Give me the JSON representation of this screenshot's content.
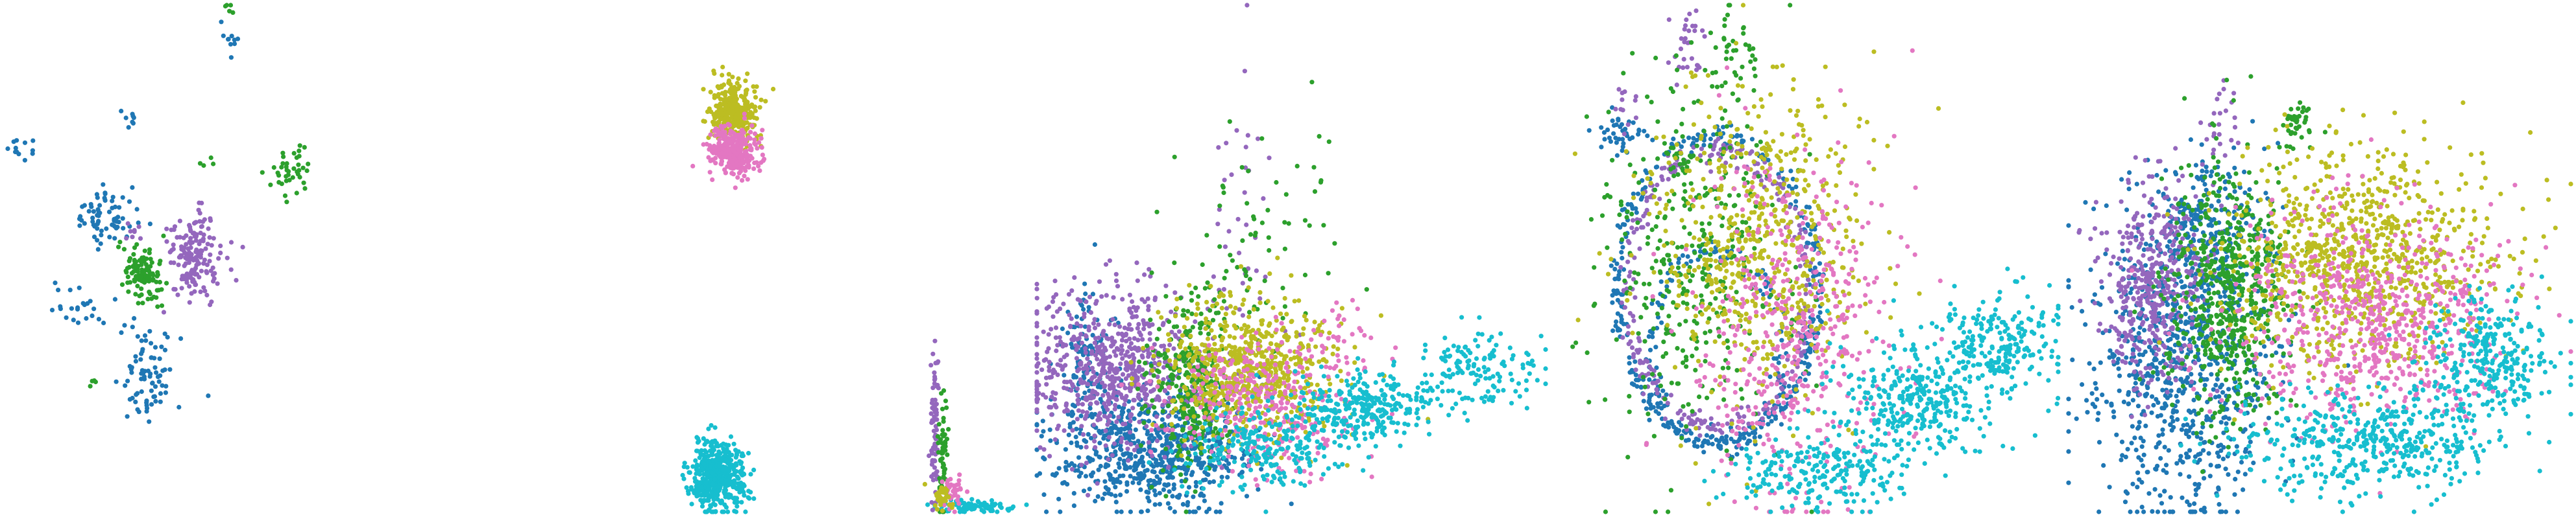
{
  "chart_data": [
    {
      "type": "scatter",
      "panel_index": 1,
      "xlim": [
        0,
        100
      ],
      "ylim": [
        0,
        100
      ],
      "grid": false,
      "legend": "none",
      "series": [
        {
          "color": "#1f77b4",
          "clusters": [
            {
              "cx": 3,
              "cy": 72,
              "sx": 1.5,
              "sy": 1.5,
              "n": 12
            },
            {
              "cx": 17,
              "cy": 58,
              "sx": 2.8,
              "sy": 3.2,
              "n": 70
            },
            {
              "cx": 24,
              "cy": 28,
              "sx": 2.5,
              "sy": 5,
              "n": 80
            },
            {
              "cx": 12,
              "cy": 40,
              "sx": 3,
              "sy": 2.5,
              "n": 24
            },
            {
              "cx": 38,
              "cy": 93,
              "sx": 0.8,
              "sy": 1.2,
              "n": 10
            },
            {
              "cx": 21,
              "cy": 78,
              "sx": 0.8,
              "sy": 0.8,
              "n": 8
            }
          ]
        },
        {
          "color": "#9467bd",
          "clusters": [
            {
              "cx": 32,
              "cy": 50,
              "sx": 2.2,
              "sy": 4.5,
              "n": 170
            },
            {
              "cx": 21,
              "cy": 55,
              "sx": 1.2,
              "sy": 1.2,
              "n": 8
            }
          ]
        },
        {
          "color": "#2ca02c",
          "clusters": [
            {
              "cx": 23,
              "cy": 47,
              "sx": 1.6,
              "sy": 2.8,
              "n": 120
            },
            {
              "cx": 48,
              "cy": 67,
              "sx": 1.6,
              "sy": 2.2,
              "n": 40
            },
            {
              "cx": 38,
              "cy": 99,
              "sx": 0.5,
              "sy": 0.7,
              "n": 5
            },
            {
              "cx": 34,
              "cy": 69,
              "sx": 0.6,
              "sy": 0.8,
              "n": 4
            },
            {
              "cx": 15,
              "cy": 25,
              "sx": 0.6,
              "sy": 0.6,
              "n": 4
            }
          ]
        }
      ]
    },
    {
      "type": "scatter",
      "panel_index": 2,
      "xlim": [
        0,
        100
      ],
      "ylim": [
        0,
        100
      ],
      "grid": false,
      "legend": "none",
      "series": [
        {
          "color": "#bcbd22",
          "clusters": [
            {
              "cx": 30,
              "cy": 79,
              "sx": 3,
              "sy": 3,
              "n": 320
            }
          ]
        },
        {
          "color": "#e377c2",
          "clusters": [
            {
              "cx": 30,
              "cy": 71,
              "sx": 3,
              "sy": 2.5,
              "n": 320
            }
          ]
        },
        {
          "color": "#17becf",
          "clusters": [
            {
              "cx": 26,
              "cy": 7,
              "sx": 3.2,
              "sy": 3.5,
              "n": 460
            },
            {
              "cx": 88,
              "cy": 1,
              "sx": 5,
              "sy": 0.6,
              "n": 80
            }
          ]
        },
        {
          "color": "#9467bd",
          "clusters": [
            {
              "cx": 78,
              "cy": 17,
              "sx": 0.5,
              "sy": 8,
              "n": 80
            }
          ]
        },
        {
          "color": "#2ca02c",
          "clusters": [
            {
              "cx": 80,
              "cy": 11,
              "sx": 0.6,
              "sy": 6,
              "n": 55
            }
          ]
        },
        {
          "color": "#e377c2",
          "clusters": [
            {
              "cx": 82,
              "cy": 4,
              "sx": 1.5,
              "sy": 1.5,
              "n": 45
            }
          ]
        },
        {
          "color": "#bcbd22",
          "clusters": [
            {
              "cx": 80,
              "cy": 3,
              "sx": 1.2,
              "sy": 1.2,
              "n": 35
            }
          ]
        }
      ]
    },
    {
      "type": "scatter",
      "panel_index": 3,
      "xlim": [
        0,
        100
      ],
      "ylim": [
        0,
        100
      ],
      "grid": false,
      "legend": "none",
      "series": [
        {
          "color": "#1f77b4",
          "clusters": [
            {
              "cx": 22,
              "cy": 12,
              "sx": 10,
              "sy": 6,
              "n": 650
            },
            {
              "cx": 10,
              "cy": 30,
              "sx": 2,
              "sy": 8,
              "n": 100
            }
          ]
        },
        {
          "color": "#9467bd",
          "clusters": [
            {
              "cx": 15,
              "cy": 28,
              "sx": 9,
              "sy": 8,
              "n": 650
            },
            {
              "cx": 40,
              "cy": 57,
              "sx": 4,
              "sy": 14,
              "n": 40
            }
          ]
        },
        {
          "color": "#2ca02c",
          "clusters": [
            {
              "cx": 30,
              "cy": 25,
              "sx": 4,
              "sy": 9,
              "n": 320
            },
            {
              "cx": 45,
              "cy": 55,
              "sx": 8,
              "sy": 10,
              "n": 65
            }
          ]
        },
        {
          "color": "#bcbd22",
          "clusters": [
            {
              "cx": 42,
              "cy": 28,
              "sx": 8,
              "sy": 7,
              "n": 650
            }
          ]
        },
        {
          "color": "#e377c2",
          "clusters": [
            {
              "cx": 45,
              "cy": 22,
              "sx": 9,
              "sy": 7,
              "n": 350
            },
            {
              "cx": 58,
              "cy": 35,
              "sx": 3,
              "sy": 3,
              "n": 20
            }
          ]
        },
        {
          "color": "#17becf",
          "clusters": [
            {
              "cx": 45,
              "cy": 12,
              "sx": 8,
              "sy": 4,
              "n": 220
            },
            {
              "cx": 65,
              "cy": 21,
              "sx": 8,
              "sy": 3.5,
              "n": 300
            },
            {
              "cx": 87,
              "cy": 28,
              "sx": 6,
              "sy": 3.5,
              "n": 130
            }
          ]
        }
      ]
    },
    {
      "type": "scatter",
      "panel_index": 4,
      "xlim": [
        0,
        100
      ],
      "ylim": [
        0,
        100
      ],
      "grid": false,
      "legend": "none",
      "series": [
        {
          "color": "#1f77b4",
          "rings": [
            {
              "cx": 32,
              "cy": 44,
              "r": 20,
              "n": 350,
              "ry": 1.5
            },
            {
              "cx": 32,
              "cy": 32,
              "r": 13,
              "n": 150,
              "ry": 1.5
            }
          ],
          "clusters": [
            {
              "cx": 13,
              "cy": 75,
              "sx": 3,
              "sy": 2,
              "n": 40
            }
          ]
        },
        {
          "color": "#9467bd",
          "rings": [
            {
              "cx": 32,
              "cy": 44,
              "r": 18,
              "n": 280,
              "ry": 1.5
            }
          ],
          "clusters": [
            {
              "cx": 26,
              "cy": 92,
              "sx": 2,
              "sy": 5,
              "n": 30
            },
            {
              "cx": 14,
              "cy": 80,
              "sx": 1,
              "sy": 2,
              "n": 12
            }
          ]
        },
        {
          "color": "#2ca02c",
          "clusters": [
            {
              "cx": 27,
              "cy": 50,
              "sx": 9,
              "sy": 17,
              "n": 360
            },
            {
              "cx": 36,
              "cy": 90,
              "sx": 2,
              "sy": 6,
              "n": 40
            },
            {
              "cx": 24,
              "cy": 70,
              "sx": 2,
              "sy": 3,
              "n": 20
            }
          ]
        },
        {
          "color": "#bcbd22",
          "clusters": [
            {
              "cx": 40,
              "cy": 52,
              "sx": 11,
              "sy": 16,
              "n": 600
            }
          ]
        },
        {
          "color": "#e377c2",
          "clusters": [
            {
              "cx": 47,
              "cy": 35,
              "sx": 10,
              "sy": 17,
              "n": 480
            }
          ]
        },
        {
          "color": "#17becf",
          "clusters": [
            {
              "cx": 52,
              "cy": 8,
              "sx": 9,
              "sy": 3.5,
              "n": 220
            },
            {
              "cx": 72,
              "cy": 22,
              "sx": 8,
              "sy": 6,
              "n": 350
            },
            {
              "cx": 88,
              "cy": 33,
              "sx": 6,
              "sy": 5,
              "n": 220
            }
          ]
        }
      ]
    },
    {
      "type": "scatter",
      "panel_index": 5,
      "xlim": [
        0,
        100
      ],
      "ylim": [
        0,
        100
      ],
      "grid": false,
      "legend": "none",
      "series": [
        {
          "color": "#1f77b4",
          "clusters": [
            {
              "cx": 23,
              "cy": 30,
              "sx": 9,
              "sy": 16,
              "n": 800
            },
            {
              "cx": 28,
              "cy": 56,
              "sx": 5,
              "sy": 8,
              "n": 200
            }
          ]
        },
        {
          "color": "#9467bd",
          "clusters": [
            {
              "cx": 17,
              "cy": 45,
              "sx": 5,
              "sy": 10,
              "n": 420
            },
            {
              "cx": 31,
              "cy": 76,
              "sx": 2,
              "sy": 4,
              "n": 25
            }
          ]
        },
        {
          "color": "#2ca02c",
          "clusters": [
            {
              "cx": 32,
              "cy": 43,
              "sx": 6,
              "sy": 13,
              "n": 600
            },
            {
              "cx": 46,
              "cy": 76,
              "sx": 1.8,
              "sy": 2.2,
              "n": 40
            }
          ]
        },
        {
          "color": "#bcbd22",
          "clusters": [
            {
              "cx": 57,
              "cy": 50,
              "sx": 13,
              "sy": 11,
              "n": 900
            }
          ]
        },
        {
          "color": "#e377c2",
          "clusters": [
            {
              "cx": 60,
              "cy": 38,
              "sx": 14,
              "sy": 11,
              "n": 700
            }
          ]
        },
        {
          "color": "#17becf",
          "clusters": [
            {
              "cx": 60,
              "cy": 14,
              "sx": 13,
              "sy": 5,
              "n": 450
            },
            {
              "cx": 83,
              "cy": 30,
              "sx": 7,
              "sy": 6,
              "n": 300
            }
          ]
        }
      ]
    }
  ]
}
